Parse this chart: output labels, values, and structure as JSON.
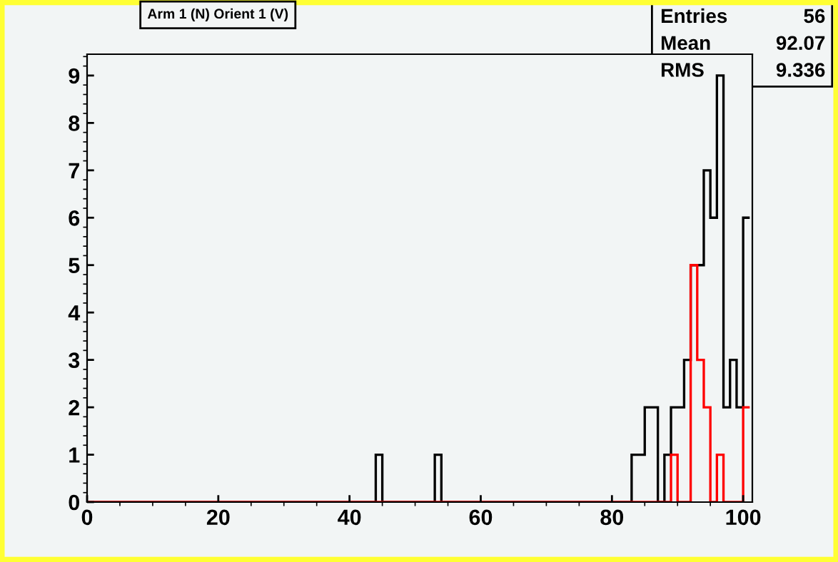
{
  "chart_data": {
    "type": "histogram",
    "title": "Arm 1 (N) Orient 1 (V)",
    "bins": [
      0,
      44,
      45,
      53,
      54,
      83,
      84,
      85,
      86,
      87,
      88,
      89,
      90,
      91,
      92,
      93,
      94,
      95,
      96,
      97,
      98,
      99,
      100,
      101
    ],
    "series": [
      {
        "color": "#000000",
        "values": [
          0,
          1,
          0,
          1,
          0,
          1,
          1,
          2,
          2,
          0,
          1,
          2,
          2,
          3,
          5,
          5,
          7,
          6,
          9,
          2,
          3,
          2,
          6
        ]
      },
      {
        "color": "#ff0000",
        "values": [
          0,
          0,
          0,
          0,
          0,
          0,
          0,
          0,
          0,
          0,
          0,
          1,
          0,
          0,
          5,
          3,
          2,
          0,
          1,
          0,
          0,
          0,
          2
        ]
      }
    ],
    "xlim": [
      0,
      101.4
    ],
    "xticks": [
      0,
      20,
      40,
      60,
      80,
      100
    ],
    "ylim": [
      0,
      9.45
    ],
    "yticks": [
      0,
      1,
      2,
      3,
      4,
      5,
      6,
      7,
      8,
      9
    ],
    "grid": false,
    "legend": false,
    "annotations": [
      "Entries 56",
      "Mean 92.07",
      "RMS 9.336"
    ]
  }
}
